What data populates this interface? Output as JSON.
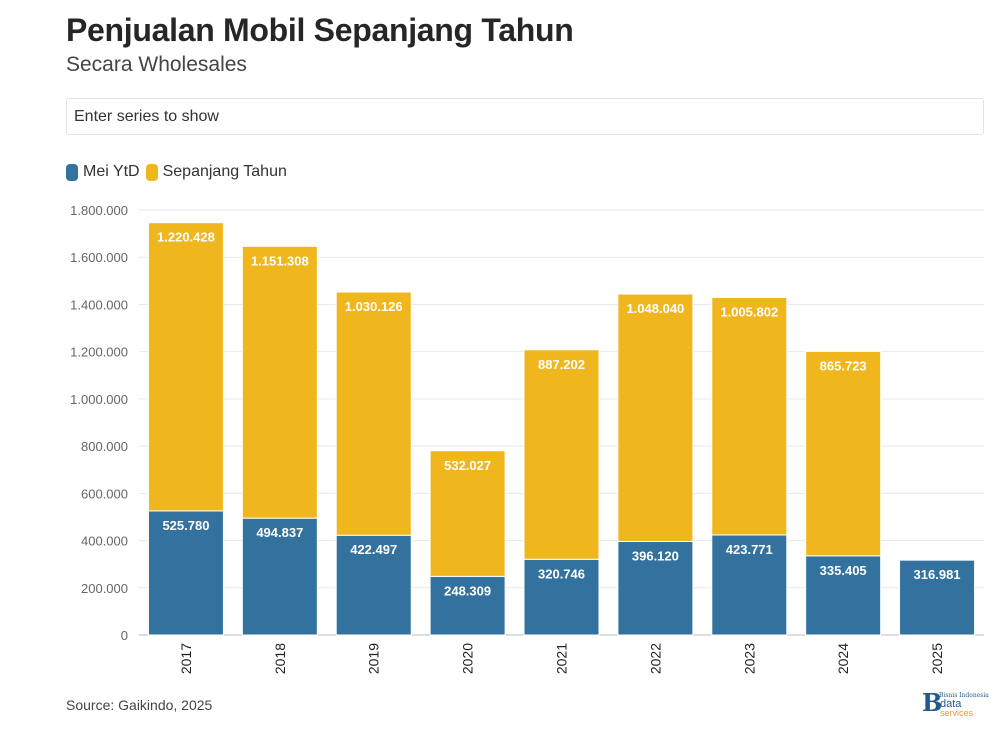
{
  "title": "Penjualan Mobil Sepanjang Tahun",
  "subtitle": "Secara Wholesales",
  "search": {
    "placeholder": "Enter series to show"
  },
  "legend": [
    {
      "label": "Mei YtD",
      "color": "#33729e"
    },
    {
      "label": "Sepanjang Tahun",
      "color": "#f0b61d"
    }
  ],
  "source": "Source: Gaikindo, 2025",
  "logo": {
    "top_text": "Bisnis Indonesia",
    "mid_text": "data",
    "bottom_text": "services"
  },
  "chart_data": {
    "type": "bar",
    "stacked": true,
    "categories": [
      "2017",
      "2018",
      "2019",
      "2020",
      "2021",
      "2022",
      "2023",
      "2024",
      "2025"
    ],
    "series": [
      {
        "name": "Mei YtD",
        "color": "#33729e",
        "values": [
          525780,
          494837,
          422497,
          248309,
          320746,
          396120,
          423771,
          335405,
          316981
        ],
        "labels": [
          "525.780",
          "494.837",
          "422.497",
          "248.309",
          "320.746",
          "396.120",
          "423.771",
          "335.405",
          "316.981"
        ]
      },
      {
        "name": "Sepanjang Tahun",
        "color": "#f0b61d",
        "values": [
          1220428,
          1151308,
          1030126,
          532027,
          887202,
          1048040,
          1005802,
          865723,
          null
        ],
        "labels": [
          "1.220.428",
          "1.151.308",
          "1.030.126",
          "532.027",
          "887.202",
          "1.048.040",
          "1.005.802",
          "865.723",
          ""
        ]
      }
    ],
    "ylim": [
      0,
      1800000
    ],
    "yticks": [
      0,
      200000,
      400000,
      600000,
      800000,
      1000000,
      1200000,
      1400000,
      1600000,
      1800000
    ],
    "ytick_labels": [
      "0",
      "200.000",
      "400.000",
      "600.000",
      "800.000",
      "1.000.000",
      "1.200.000",
      "1.400.000",
      "1.600.000",
      "1.800.000"
    ],
    "grid": true,
    "legend_position": "top-left"
  }
}
